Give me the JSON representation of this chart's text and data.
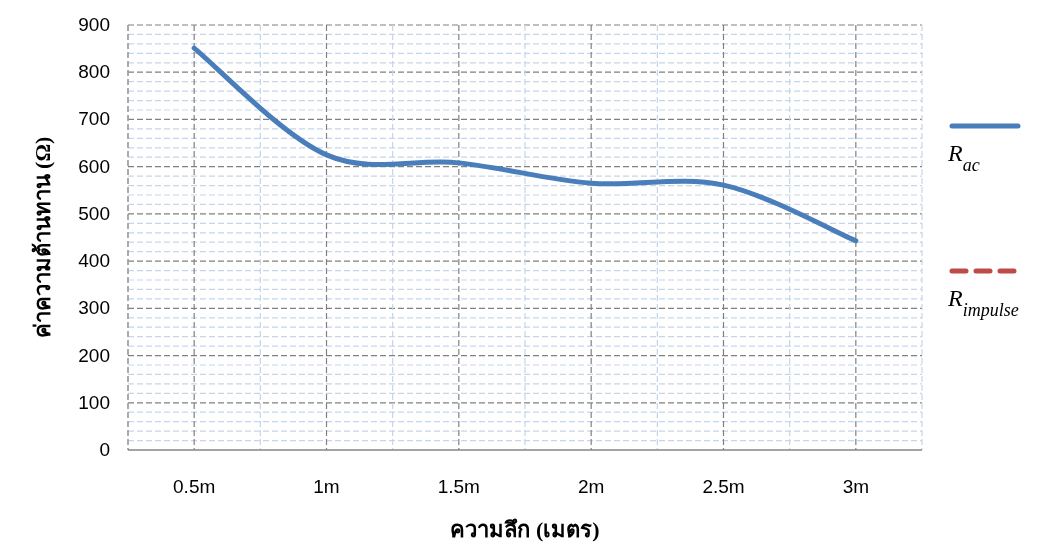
{
  "chart_data": {
    "type": "line",
    "xlabel": "ความลึก (เมตร)",
    "ylabel": "ค่าความต้านทาน (Ω)",
    "categories": [
      "0.5m",
      "1m",
      "1.5m",
      "2m",
      "2.5m",
      "3m"
    ],
    "series": [
      {
        "name": "R$_{ac}$",
        "color": "#4a7ebb",
        "values": [
          851,
          625,
          608,
          565,
          561,
          443
        ],
        "line_style": "solid"
      },
      {
        "name": "R$_{impulse}$",
        "color": "#be4b48",
        "values": [
          null,
          null,
          null,
          null,
          null,
          null
        ],
        "line_style": "dashed"
      }
    ],
    "ylim": [
      0,
      900
    ],
    "yticks": [
      0,
      100,
      200,
      300,
      400,
      500,
      600,
      700,
      800,
      900
    ],
    "grid": true,
    "legend": "right"
  }
}
